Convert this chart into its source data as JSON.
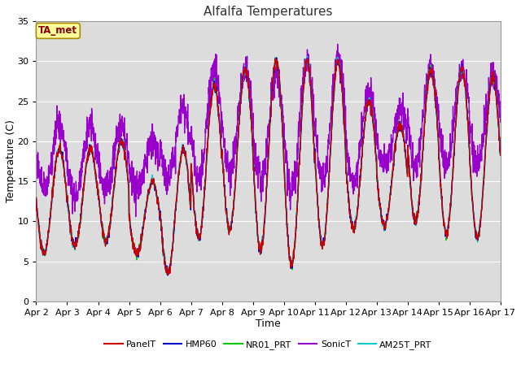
{
  "title": "Alfalfa Temperatures",
  "xlabel": "Time",
  "ylabel": "Temperature (C)",
  "ylim": [
    0,
    35
  ],
  "tag_text": "TA_met",
  "tag_bg": "#ffff99",
  "tag_text_color": "#8b0000",
  "fig_bg": "#ffffff",
  "plot_bg": "#dcdcdc",
  "series": {
    "PanelT": {
      "color": "#cc0000",
      "lw": 1.0
    },
    "HMP60": {
      "color": "#0000cc",
      "lw": 1.0
    },
    "NR01_PRT": {
      "color": "#00cc00",
      "lw": 1.0
    },
    "SonicT": {
      "color": "#9900cc",
      "lw": 1.0
    },
    "AM25T_PRT": {
      "color": "#00cccc",
      "lw": 1.0
    }
  },
  "tick_labels": [
    "Apr 2",
    "Apr 3",
    "Apr 4",
    "Apr 5",
    "Apr 6",
    "Apr 7",
    "Apr 8",
    "Apr 9",
    "Apr 10",
    "Apr 11",
    "Apr 12",
    "Apr 13",
    "Apr 14",
    "Apr 15",
    "Apr 16",
    "Apr 17"
  ],
  "yticks": [
    0,
    5,
    10,
    15,
    20,
    25,
    30,
    35
  ],
  "grid_color": "#c8c8c8",
  "grid_lw": 0.8
}
